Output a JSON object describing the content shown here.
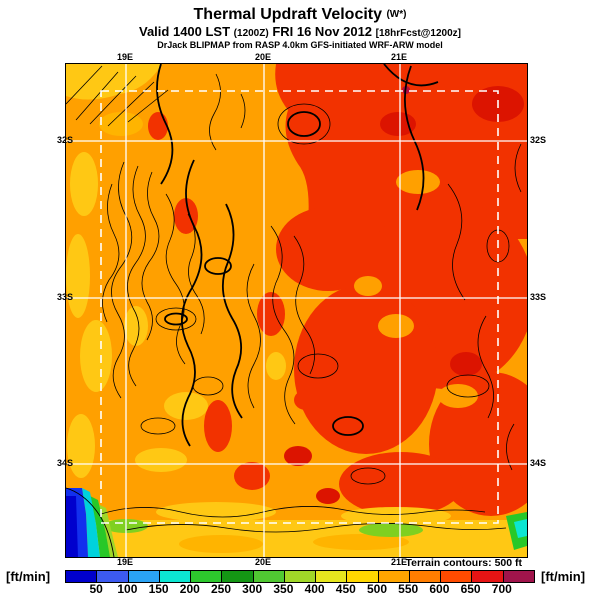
{
  "header": {
    "title": "Thermal Updraft Velocity",
    "title_suffix": "(W*)",
    "valid_prefix": "Valid 1400 LST",
    "valid_zulu": "(1200Z)",
    "valid_date": "FRI 16 Nov 2012",
    "valid_fcst": "[18hrFcst@1200z]",
    "model_line": "DrJack BLIPMAP from RASP 4.0km GFS-initiated WRF-ARW model"
  },
  "map": {
    "lon_labels": [
      "19E",
      "20E",
      "21E"
    ],
    "lat_labels": [
      "32S",
      "33S",
      "34S"
    ],
    "terrain_note": "Terrain contours: 500 ft"
  },
  "colorbar": {
    "unit_left": "[ft/min]",
    "unit_right": "[ft/min]",
    "ticks": [
      50,
      100,
      150,
      200,
      250,
      300,
      350,
      400,
      450,
      500,
      550,
      600,
      650,
      700
    ],
    "colors": [
      "#0000CD",
      "#3C5AF0",
      "#2AA3F5",
      "#0CE6D2",
      "#2DC82D",
      "#149614",
      "#50C832",
      "#A0D728",
      "#E6E61E",
      "#FFD700",
      "#FFA500",
      "#FF7D00",
      "#FF4B00",
      "#E61414",
      "#A0144B"
    ]
  },
  "chart_data": {
    "type": "heatmap",
    "title": "Thermal Updraft Velocity (W*)",
    "subtitle": "Valid 1400 LST (1200Z) FRI 16 Nov 2012 [18hrFcst@1200z]",
    "source": "DrJack BLIPMAP from RASP 4.0km GFS-initiated WRF-ARW model",
    "units": "ft/min",
    "x_ticks": [
      "19E",
      "20E",
      "21E"
    ],
    "y_ticks": [
      "32S",
      "33S",
      "34S"
    ],
    "scale_levels": [
      50,
      100,
      150,
      200,
      250,
      300,
      350,
      400,
      450,
      500,
      550,
      600,
      650,
      700
    ],
    "scale_colors": [
      "#0000CD",
      "#3C5AF0",
      "#2AA3F5",
      "#0CE6D2",
      "#2DC82D",
      "#149614",
      "#50C832",
      "#A0D728",
      "#E6E61E",
      "#FFD700",
      "#FFA500",
      "#FF7D00",
      "#FF4B00",
      "#E61414",
      "#A0144B"
    ],
    "legend_note": "Terrain contours: 500 ft",
    "field_summary": "Updraft velocity 450-650 ft/min over most of domain (orange/red), 350-450 ft/min (yellow) along west and south edges, near 0-150 ft/min (blue/cyan) over ocean at southwest corner"
  }
}
